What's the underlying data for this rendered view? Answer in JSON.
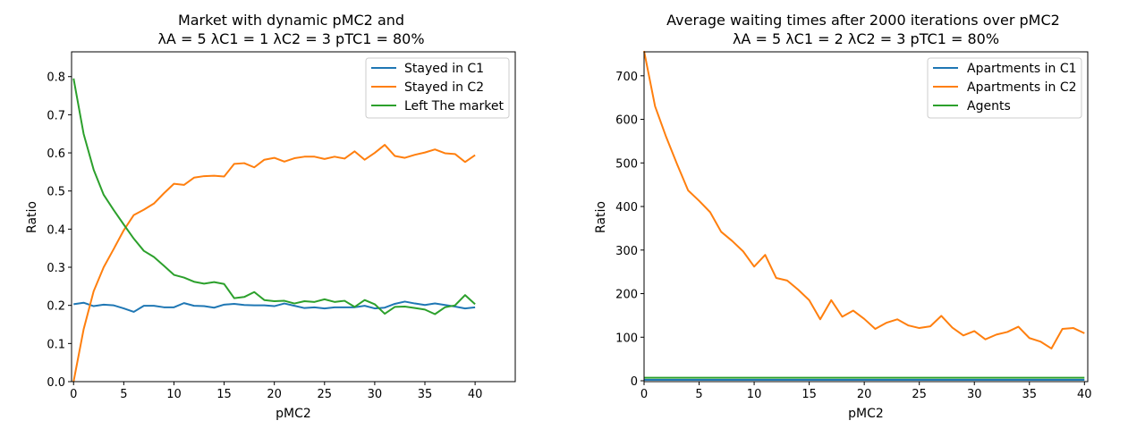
{
  "chart_data": [
    {
      "type": "line",
      "title_line1": "Market with dynamic pMC2 and",
      "title_line2": "λA = 5 λC1 = 1 λC2 = 3 pTC1 = 80%",
      "xlabel": "pMC2",
      "ylabel": "Ratio",
      "xlim": [
        -0.2,
        44
      ],
      "ylim": [
        0,
        0.865
      ],
      "xticks": [
        0,
        5,
        10,
        15,
        20,
        25,
        30,
        35,
        40
      ],
      "yticks": [
        0.0,
        0.1,
        0.2,
        0.3,
        0.4,
        0.5,
        0.6,
        0.7,
        0.8
      ],
      "ytick_labels": [
        "0.0",
        "0.1",
        "0.2",
        "0.3",
        "0.4",
        "0.5",
        "0.6",
        "0.7",
        "0.8"
      ],
      "legend_position": "top-right",
      "x": [
        0,
        1,
        2,
        3,
        4,
        5,
        6,
        7,
        8,
        9,
        10,
        11,
        12,
        13,
        14,
        15,
        16,
        17,
        18,
        19,
        20,
        21,
        22,
        23,
        24,
        25,
        26,
        27,
        28,
        29,
        30,
        31,
        32,
        33,
        34,
        35,
        36,
        37,
        38,
        39,
        40
      ],
      "series": [
        {
          "name": "Stayed in C1",
          "color": "#1f77b4",
          "values": [
            0.203,
            0.207,
            0.198,
            0.202,
            0.2,
            0.192,
            0.183,
            0.199,
            0.199,
            0.195,
            0.195,
            0.206,
            0.199,
            0.198,
            0.194,
            0.202,
            0.204,
            0.201,
            0.2,
            0.2,
            0.198,
            0.205,
            0.199,
            0.193,
            0.195,
            0.192,
            0.195,
            0.195,
            0.195,
            0.199,
            0.192,
            0.194,
            0.204,
            0.21,
            0.205,
            0.201,
            0.205,
            0.201,
            0.197,
            0.192,
            0.195
          ]
        },
        {
          "name": "Stayed in C2",
          "color": "#ff7f0e",
          "values": [
            0.0,
            0.137,
            0.237,
            0.3,
            0.348,
            0.397,
            0.437,
            0.451,
            0.467,
            0.494,
            0.519,
            0.516,
            0.535,
            0.539,
            0.54,
            0.538,
            0.571,
            0.573,
            0.562,
            0.582,
            0.587,
            0.577,
            0.586,
            0.59,
            0.59,
            0.584,
            0.59,
            0.585,
            0.604,
            0.582,
            0.6,
            0.621,
            0.592,
            0.587,
            0.595,
            0.601,
            0.609,
            0.599,
            0.597,
            0.576,
            0.594
          ]
        },
        {
          "name": "Left The market",
          "color": "#2ca02c",
          "values": [
            0.795,
            0.65,
            0.556,
            0.49,
            0.45,
            0.412,
            0.375,
            0.343,
            0.327,
            0.304,
            0.28,
            0.273,
            0.262,
            0.257,
            0.261,
            0.256,
            0.219,
            0.222,
            0.235,
            0.214,
            0.211,
            0.212,
            0.205,
            0.211,
            0.209,
            0.216,
            0.209,
            0.212,
            0.196,
            0.214,
            0.203,
            0.178,
            0.196,
            0.197,
            0.193,
            0.189,
            0.177,
            0.195,
            0.2,
            0.227,
            0.203
          ]
        }
      ]
    },
    {
      "type": "line",
      "title_line1": "Average waiting times after 2000 iterations over pMC2",
      "title_line2": "λA = 5 λC1 = 2 λC2 = 3 pTC1 = 80%",
      "xlabel": "pMC2",
      "ylabel": "Ratio",
      "xlim": [
        0,
        40.3
      ],
      "ylim": [
        -2,
        755
      ],
      "xticks": [
        0,
        5,
        10,
        15,
        20,
        25,
        30,
        35,
        40
      ],
      "yticks": [
        0,
        100,
        200,
        300,
        400,
        500,
        600,
        700
      ],
      "ytick_labels": [
        "0",
        "100",
        "200",
        "300",
        "400",
        "500",
        "600",
        "700"
      ],
      "legend_position": "top-right",
      "x": [
        0,
        1,
        2,
        3,
        4,
        5,
        6,
        7,
        8,
        9,
        10,
        11,
        12,
        13,
        14,
        15,
        16,
        17,
        18,
        19,
        20,
        21,
        22,
        23,
        24,
        25,
        26,
        27,
        28,
        29,
        30,
        31,
        32,
        33,
        34,
        35,
        36,
        37,
        38,
        39,
        40
      ],
      "series": [
        {
          "name": "Apartments in C1",
          "color": "#1f77b4",
          "values": [
            2,
            2,
            2,
            2,
            2,
            2,
            2,
            2,
            2,
            2,
            2,
            2,
            2,
            2,
            2,
            2,
            2,
            2,
            2,
            2,
            2,
            2,
            2,
            2,
            2,
            2,
            2,
            2,
            2,
            2,
            2,
            2,
            2,
            2,
            2,
            2,
            2,
            2,
            2,
            2,
            2
          ]
        },
        {
          "name": "Apartments in C2",
          "color": "#ff7f0e",
          "values": [
            757,
            630,
            560,
            497,
            437,
            413,
            387,
            342,
            321,
            297,
            262,
            289,
            236,
            230,
            209,
            185,
            141,
            185,
            147,
            161,
            142,
            119,
            133,
            141,
            127,
            121,
            125,
            149,
            122,
            104,
            114,
            95,
            106,
            112,
            124,
            98,
            90,
            74,
            119,
            121,
            109
          ]
        },
        {
          "name": "Agents",
          "color": "#2ca02c",
          "values": [
            7,
            7,
            7,
            7,
            7,
            7,
            7,
            7,
            7,
            7,
            7,
            7,
            7,
            7,
            7,
            7,
            7,
            7,
            7,
            7,
            7,
            7,
            7,
            7,
            7,
            7,
            7,
            7,
            7,
            7,
            7,
            7,
            7,
            7,
            7,
            7,
            7,
            7,
            7,
            7,
            7
          ]
        }
      ]
    }
  ]
}
